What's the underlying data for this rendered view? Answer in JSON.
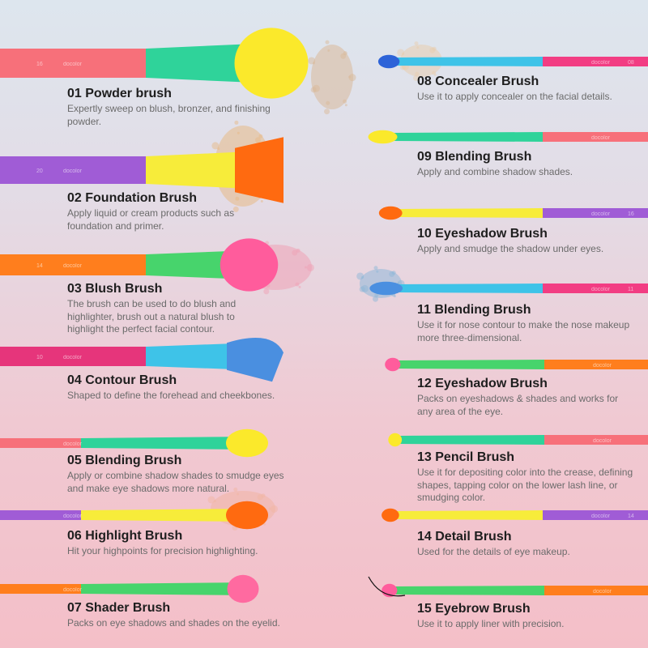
{
  "brand_text": "docolor",
  "brushes": [
    {
      "id": "01",
      "title": "01 Powder brush",
      "desc": "Expertly sweep on blush, bronzer, and finishing powder.",
      "handle_number": "16",
      "colors": {
        "handle": "#f7707a",
        "ferrule": "#2fd39a",
        "bristle": "#fbe92b"
      }
    },
    {
      "id": "02",
      "title": "02 Foundation Brush",
      "desc": "Apply liquid or cream products such as foundation and primer.",
      "handle_number": "20",
      "colors": {
        "handle": "#a05cd6",
        "ferrule": "#f7ec3a",
        "bristle": "#ff6a10"
      }
    },
    {
      "id": "03",
      "title": "03 Blush Brush",
      "desc": "The brush can be used to do blush and highlighter, brush out a natural blush to highlight the perfect facial contour.",
      "handle_number": "14",
      "colors": {
        "handle": "#ff7e1d",
        "ferrule": "#47d46c",
        "bristle": "#ff5c9c"
      }
    },
    {
      "id": "04",
      "title": "04 Contour Brush",
      "desc": "Shaped to define the forehead and cheekbones.",
      "handle_number": "10",
      "colors": {
        "handle": "#e6357b",
        "ferrule": "#3ec3e8",
        "bristle": "#4a8fe0"
      }
    },
    {
      "id": "05",
      "title": "05 Blending Brush",
      "desc": "Apply or combine shadow shades to smudge eyes and make eye shadows more natural.",
      "handle_number": "",
      "colors": {
        "handle": "#f7707a",
        "ferrule": "#2fd39a",
        "bristle": "#fbe92b"
      }
    },
    {
      "id": "06",
      "title": "06 Highlight Brush",
      "desc": "Hit your highpoints for precision highlighting.",
      "handle_number": "",
      "colors": {
        "handle": "#a05cd6",
        "ferrule": "#f7ec3a",
        "bristle": "#ff6a10"
      }
    },
    {
      "id": "07",
      "title": "07 Shader Brush",
      "desc": "Packs on eye shadows and shades on the eyelid.",
      "handle_number": "",
      "colors": {
        "handle": "#ff7e1d",
        "ferrule": "#47d46c",
        "bristle": "#ff6aa0"
      }
    },
    {
      "id": "08",
      "title": "08 Concealer Brush",
      "desc": "Use it to apply concealer on the facial details.",
      "handle_number": "08",
      "colors": {
        "handle": "#f23d83",
        "ferrule": "#3ec3e8",
        "bristle": "#2d63d8"
      }
    },
    {
      "id": "09",
      "title": "09 Blending Brush",
      "desc": "Apply and combine shadow shades.",
      "handle_number": "",
      "colors": {
        "handle": "#f7707a",
        "ferrule": "#2fd39a",
        "bristle": "#fbe92b"
      }
    },
    {
      "id": "10",
      "title": "10 Eyeshadow Brush",
      "desc": "Apply and smudge the shadow under eyes.",
      "handle_number": "16",
      "colors": {
        "handle": "#a05cd6",
        "ferrule": "#f7ec3a",
        "bristle": "#ff6a10"
      }
    },
    {
      "id": "11",
      "title": "11 Blending Brush",
      "desc": "Use it for nose contour to make the nose makeup more three-dimensional.",
      "handle_number": "11",
      "colors": {
        "handle": "#f23d83",
        "ferrule": "#3ec3e8",
        "bristle": "#4a8fe0"
      }
    },
    {
      "id": "12",
      "title": "12 Eyeshadow Brush",
      "desc": "Packs on eyeshadows & shades and works for any area of the eye.",
      "handle_number": "",
      "colors": {
        "handle": "#ff7e1d",
        "ferrule": "#47d46c",
        "bristle": "#ff5c9c"
      }
    },
    {
      "id": "13",
      "title": "13 Pencil Brush",
      "desc": "Use it for depositing color into the crease, defining shapes, tapping color on the lower lash line, or smudging color.",
      "handle_number": "",
      "colors": {
        "handle": "#f7707a",
        "ferrule": "#2fd39a",
        "bristle": "#fbe92b"
      }
    },
    {
      "id": "14",
      "title": "14 Detail Brush",
      "desc": "Used for the details of eye makeup.",
      "handle_number": "14",
      "colors": {
        "handle": "#a05cd6",
        "ferrule": "#f7ec3a",
        "bristle": "#ff6a10"
      }
    },
    {
      "id": "15",
      "title": "15 Eyebrow Brush",
      "desc": "Use it to apply liner with precision.",
      "handle_number": "",
      "colors": {
        "handle": "#ff7e1d",
        "ferrule": "#47d46c",
        "bristle": "#ff5c9c"
      }
    }
  ]
}
